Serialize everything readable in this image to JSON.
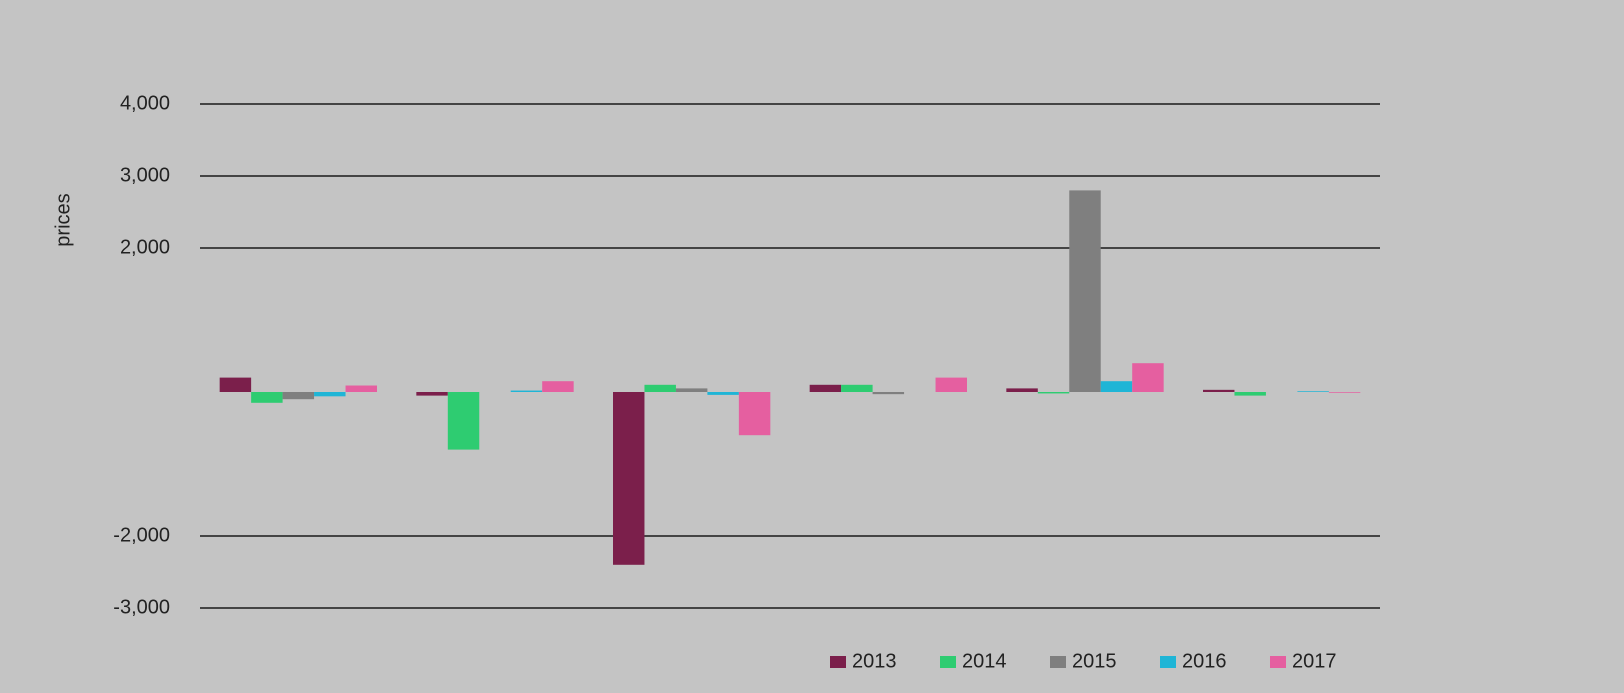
{
  "chart_data": {
    "type": "bar",
    "y_label": "prices",
    "categories": [
      null,
      null,
      null,
      null,
      null,
      null
    ],
    "series": [
      {
        "name": "2013",
        "color": "#7b1f4b",
        "values": [
          200,
          -50,
          -2400,
          100,
          50,
          30
        ]
      },
      {
        "name": "2014",
        "color": "#2ecc71",
        "values": [
          -150,
          -800,
          100,
          100,
          -20,
          -50
        ]
      },
      {
        "name": "2015",
        "color": "#7f7f7f",
        "values": [
          -100,
          0,
          50,
          -30,
          2800,
          0
        ]
      },
      {
        "name": "2016",
        "color": "#1fb5d6",
        "values": [
          -60,
          20,
          -40,
          0,
          150,
          10
        ]
      },
      {
        "name": "2017",
        "color": "#e55fa0",
        "values": [
          90,
          150,
          -600,
          200,
          400,
          -10
        ]
      }
    ],
    "ylim": [
      -3000,
      4000
    ],
    "yticks": [
      {
        "value": -3000,
        "label": "-3,000"
      },
      {
        "value": -2000,
        "label": "-2,000"
      },
      {
        "value": 2000,
        "label": "2,000"
      },
      {
        "value": 3000,
        "label": "3,000"
      },
      {
        "value": 4000,
        "label": "4,000"
      }
    ],
    "grid": true
  }
}
